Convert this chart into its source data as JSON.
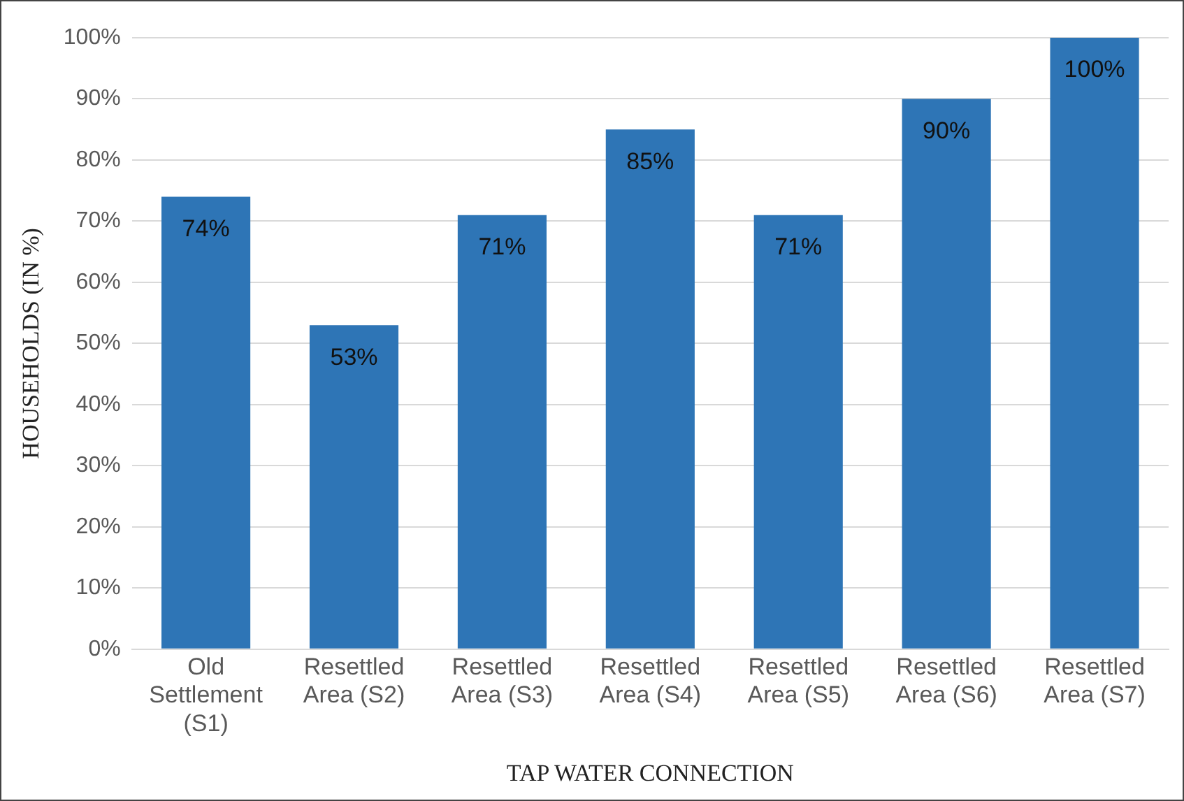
{
  "chart_data": {
    "type": "bar",
    "xlabel": "TAP WATER CONNECTION",
    "ylabel": "HOUSEHOLDS (IN %)",
    "categories": [
      "Old Settlement (S1)",
      "Resettled Area (S2)",
      "Resettled Area (S3)",
      "Resettled Area (S4)",
      "Resettled Area (S5)",
      "Resettled Area (S6)",
      "Resettled Area (S7)"
    ],
    "values": [
      74,
      53,
      71,
      85,
      71,
      90,
      100
    ],
    "value_labels": [
      "74%",
      "53%",
      "71%",
      "85%",
      "71%",
      "90%",
      "100%"
    ],
    "color": "#2e75b6",
    "ylim": [
      0,
      100
    ],
    "yticks": [
      {
        "value": 0,
        "label": "0%"
      },
      {
        "value": 10,
        "label": "10%"
      },
      {
        "value": 20,
        "label": "20%"
      },
      {
        "value": 30,
        "label": "30%"
      },
      {
        "value": 40,
        "label": "40%"
      },
      {
        "value": 50,
        "label": "50%"
      },
      {
        "value": 60,
        "label": "60%"
      },
      {
        "value": 70,
        "label": "70%"
      },
      {
        "value": 80,
        "label": "80%"
      },
      {
        "value": 90,
        "label": "90%"
      },
      {
        "value": 100,
        "label": "100%"
      }
    ],
    "grid": "y",
    "legend": false
  }
}
